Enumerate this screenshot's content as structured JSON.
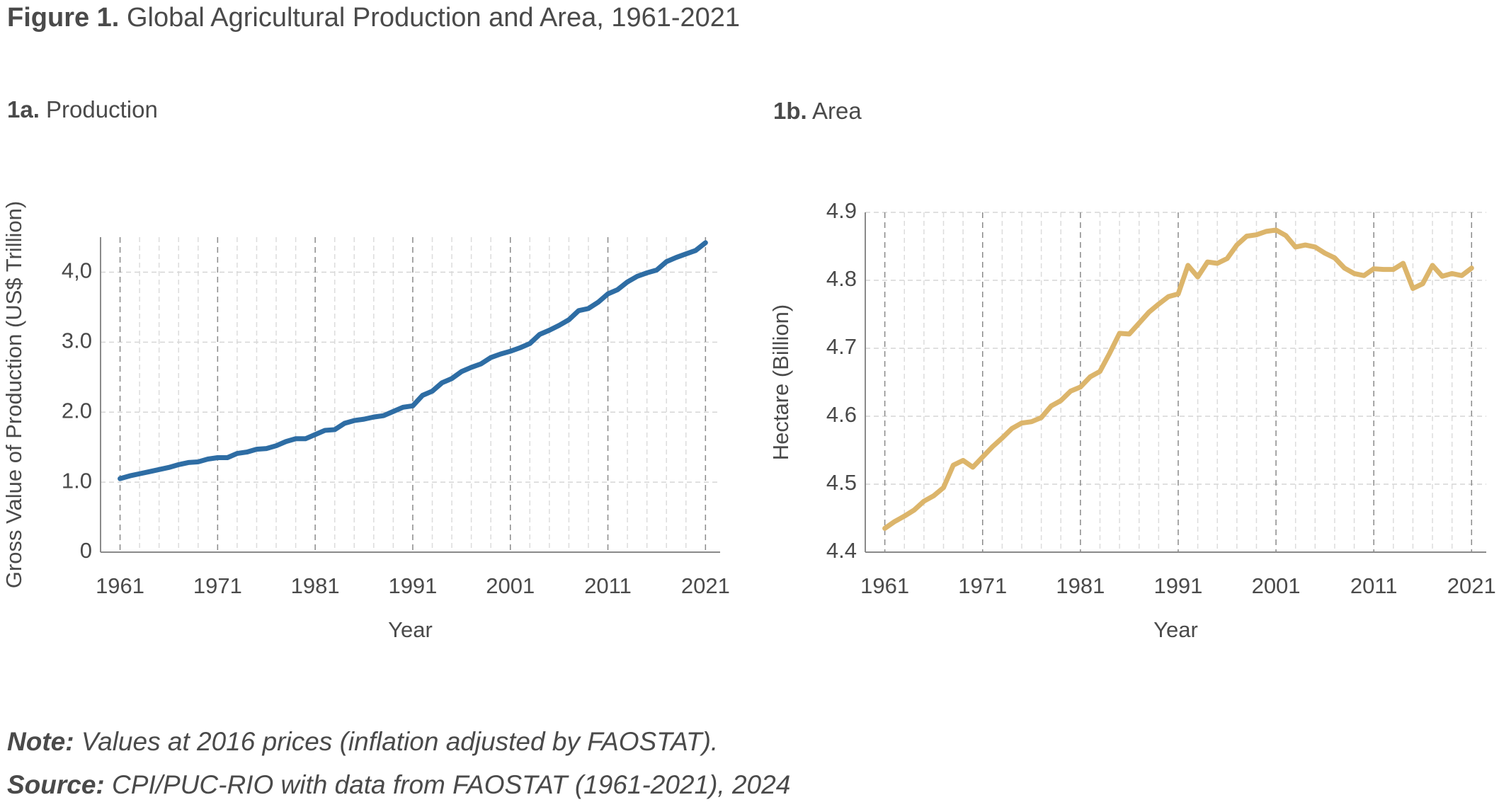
{
  "figure": {
    "label": "Figure 1.",
    "title": "Global Agricultural Production and Area, 1961-2021"
  },
  "chart_data": [
    {
      "type": "line",
      "panel_label": "1a.",
      "title": "Production",
      "x_label": "Year",
      "y_label": "Gross Value of Production (US$ Trillion)",
      "x": [
        1961,
        1962,
        1963,
        1964,
        1965,
        1966,
        1967,
        1968,
        1969,
        1970,
        1971,
        1972,
        1973,
        1974,
        1975,
        1976,
        1977,
        1978,
        1979,
        1980,
        1981,
        1982,
        1983,
        1984,
        1985,
        1986,
        1987,
        1988,
        1989,
        1990,
        1991,
        1992,
        1993,
        1994,
        1995,
        1996,
        1997,
        1998,
        1999,
        2000,
        2001,
        2002,
        2003,
        2004,
        2005,
        2006,
        2007,
        2008,
        2009,
        2010,
        2011,
        2012,
        2013,
        2014,
        2015,
        2016,
        2017,
        2018,
        2019,
        2020,
        2021
      ],
      "values": [
        1.05,
        1.09,
        1.12,
        1.15,
        1.18,
        1.21,
        1.25,
        1.28,
        1.29,
        1.33,
        1.35,
        1.35,
        1.41,
        1.43,
        1.47,
        1.48,
        1.52,
        1.58,
        1.62,
        1.62,
        1.68,
        1.74,
        1.75,
        1.84,
        1.88,
        1.9,
        1.93,
        1.95,
        2.01,
        2.07,
        2.09,
        2.24,
        2.3,
        2.42,
        2.48,
        2.58,
        2.64,
        2.69,
        2.78,
        2.83,
        2.87,
        2.92,
        2.98,
        3.11,
        3.17,
        3.24,
        3.32,
        3.45,
        3.48,
        3.57,
        3.69,
        3.75,
        3.86,
        3.94,
        3.99,
        4.03,
        4.15,
        4.21,
        4.26,
        4.31,
        4.42
      ],
      "color": "#2e6da4",
      "xlim": [
        1959,
        2022.5
      ],
      "xticks": [
        1961,
        1971,
        1981,
        1991,
        2001,
        2011,
        2021
      ],
      "ylim": [
        0,
        4.5
      ],
      "yticks": [
        0,
        {
          "value": 1,
          "label": "1.0"
        },
        {
          "value": 2,
          "label": "2.0"
        },
        {
          "value": 3,
          "label": "3.0"
        },
        {
          "value": 4,
          "label": "4,0"
        }
      ],
      "grid": true,
      "minor_grid": true
    },
    {
      "type": "line",
      "panel_label": "1b.",
      "title": "Area",
      "x_label": "Year",
      "y_label": "Hectare (Billion)",
      "x": [
        1961,
        1962,
        1963,
        1964,
        1965,
        1966,
        1967,
        1968,
        1969,
        1970,
        1971,
        1972,
        1973,
        1974,
        1975,
        1976,
        1977,
        1978,
        1979,
        1980,
        1981,
        1982,
        1983,
        1984,
        1985,
        1986,
        1987,
        1988,
        1989,
        1990,
        1991,
        1992,
        1993,
        1994,
        1995,
        1996,
        1997,
        1998,
        1999,
        2000,
        2001,
        2002,
        2003,
        2004,
        2005,
        2006,
        2007,
        2008,
        2009,
        2010,
        2011,
        2012,
        2013,
        2014,
        2015,
        2016,
        2017,
        2018,
        2019,
        2020,
        2021
      ],
      "values": [
        4.435,
        4.445,
        4.453,
        4.462,
        4.475,
        4.483,
        4.495,
        4.528,
        4.535,
        4.525,
        4.54,
        4.555,
        4.568,
        4.582,
        4.59,
        4.592,
        4.598,
        4.615,
        4.623,
        4.637,
        4.643,
        4.658,
        4.666,
        4.693,
        4.722,
        4.721,
        4.737,
        4.753,
        4.765,
        4.776,
        4.78,
        4.822,
        4.805,
        4.827,
        4.825,
        4.832,
        4.852,
        4.865,
        4.867,
        4.872,
        4.874,
        4.866,
        4.849,
        4.852,
        4.849,
        4.84,
        4.833,
        4.818,
        4.81,
        4.807,
        4.817,
        4.816,
        4.816,
        4.825,
        4.788,
        4.795,
        4.822,
        4.806,
        4.81,
        4.807,
        4.818
      ],
      "color": "#dcb56b",
      "xlim": [
        1959,
        2022.5
      ],
      "xticks": [
        1961,
        1971,
        1981,
        1991,
        2001,
        2011,
        2021
      ],
      "ylim": [
        4.4,
        4.9
      ],
      "yticks": [
        4.4,
        4.5,
        4.6,
        4.7,
        4.8,
        4.9
      ],
      "grid": true,
      "minor_grid": true
    }
  ],
  "notes": {
    "note_label": "Note:",
    "note": "Values at 2016 prices (inflation adjusted by FAOSTAT).",
    "source_label": "Source:",
    "source": "CPI/PUC-RIO with data from FAOSTAT (1961-2021), 2024"
  }
}
